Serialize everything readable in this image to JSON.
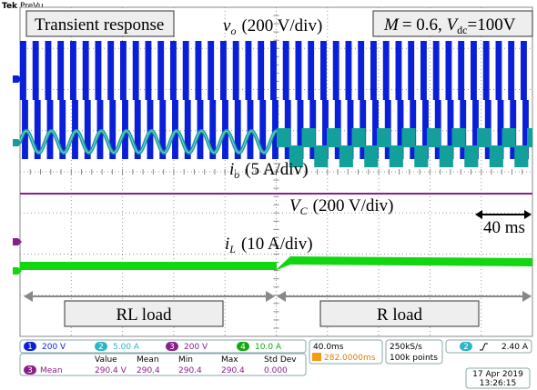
{
  "header": {
    "brand": "Tek",
    "mode": "PreVu"
  },
  "annotations": {
    "title": "Transient response",
    "vo": {
      "symbol": "v",
      "sub": "o",
      "scale": "(200 V/div)"
    },
    "params": {
      "m": "M",
      "m_value": "= 0.6, ",
      "v": "V",
      "sub": "dc",
      "v_value": "=100V"
    },
    "io": {
      "symbol": "i",
      "sub": "o",
      "scale": "(5 A/div)"
    },
    "vc": {
      "symbol": "V",
      "sub": "C",
      "scale": "(200 V/div)"
    },
    "il": {
      "symbol": "i",
      "sub": "L",
      "scale": "(10 A/div)"
    },
    "time_marker": "40 ms",
    "regions": [
      "RL load",
      "R load"
    ]
  },
  "status": {
    "channels": [
      {
        "num": "1",
        "scale": "200 V"
      },
      {
        "num": "2",
        "scale": "5.00 A"
      },
      {
        "num": "3",
        "scale": "200 V"
      },
      {
        "num": "4",
        "scale": "10.0 A"
      }
    ],
    "timebase": "40.0ms",
    "trigger_pos": "282.0000ms",
    "sample_rate": "250kS/s",
    "record": "100k points",
    "trigger": {
      "channel": "2",
      "level": "2.40 A"
    },
    "measurement": {
      "headers": [
        "Value",
        "Mean",
        "Min",
        "Max",
        "Std Dev"
      ],
      "channel": "3",
      "name": "Mean",
      "values": [
        "290.4 V",
        "290.4",
        "290.4",
        "290.4",
        "0.000"
      ]
    },
    "date": "17 Apr 2019",
    "time": "13:26:15"
  }
}
